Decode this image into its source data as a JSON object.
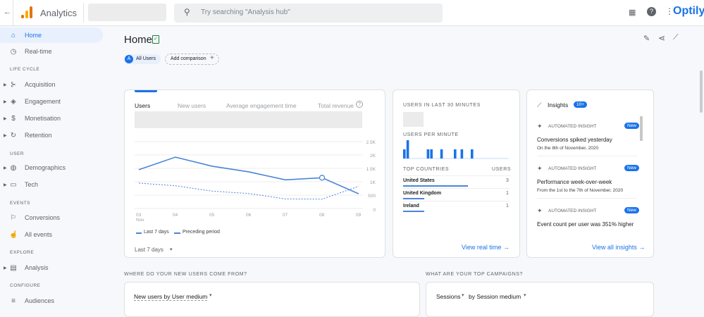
{
  "topbar": {
    "app_title": "Analytics",
    "search_placeholder": "Try searching \"Analysis hub\"",
    "brand": "Optily"
  },
  "sidebar": {
    "items": [
      {
        "label": "Home",
        "icon": "home-icon",
        "glyph": "⌂"
      },
      {
        "label": "Real-time",
        "icon": "clock-icon",
        "glyph": "◷"
      },
      {
        "section": "LIFE CYCLE"
      },
      {
        "label": "Acquisition",
        "icon": "acquisition-icon",
        "glyph": "⊱"
      },
      {
        "label": "Engagement",
        "icon": "tag-icon",
        "glyph": "◈"
      },
      {
        "label": "Monetisation",
        "icon": "dollar-icon",
        "glyph": "$"
      },
      {
        "label": "Retention",
        "icon": "retention-icon",
        "glyph": "↻"
      },
      {
        "section": "USER"
      },
      {
        "label": "Demographics",
        "icon": "globe-icon",
        "glyph": "◍"
      },
      {
        "label": "Tech",
        "icon": "devices-icon",
        "glyph": "▭"
      },
      {
        "section": "EVENTS"
      },
      {
        "label": "Conversions",
        "icon": "flag-icon",
        "glyph": "⚐"
      },
      {
        "label": "All events",
        "icon": "events-icon",
        "glyph": "☝"
      },
      {
        "section": "EXPLORE"
      },
      {
        "label": "Analysis",
        "icon": "analysis-icon",
        "glyph": "▤"
      },
      {
        "section": "CONFIGURE"
      },
      {
        "label": "Audiences",
        "icon": "audiences-icon",
        "glyph": "≡"
      }
    ]
  },
  "page": {
    "title": "Home",
    "all_users_avatar": "A",
    "all_users": "All Users",
    "add_comparison": "Add comparison"
  },
  "overview": {
    "tabs": [
      "Users",
      "New users",
      "Average engagement time",
      "Total revenue"
    ],
    "date_range": "Last 7 days"
  },
  "chart_data": {
    "type": "line",
    "x": [
      "03",
      "04",
      "05",
      "06",
      "07",
      "08",
      "09"
    ],
    "x_sublabel": "Nov",
    "series": [
      {
        "name": "Last 7 days",
        "values": [
          1450,
          1920,
          1580,
          1370,
          1070,
          1150,
          550
        ],
        "style": "solid"
      },
      {
        "name": "Preceding period",
        "values": [
          950,
          850,
          650,
          560,
          360,
          350,
          830
        ],
        "style": "dashed"
      }
    ],
    "yticks": [
      "0",
      "500",
      "1K",
      "1.5K",
      "2K",
      "2.5K"
    ],
    "ylim": [
      0,
      2500
    ],
    "grid": true,
    "legend": "bottom-left",
    "color": "#4a86d8"
  },
  "realtime": {
    "title": "USERS IN LAST 30 MINUTES",
    "per_minute": "USERS PER MINUTE",
    "per_minute_values": [
      2,
      4,
      0,
      0,
      0,
      0,
      0,
      2,
      2,
      0,
      0,
      2,
      0,
      0,
      0,
      2,
      0,
      2,
      0,
      0,
      2,
      0,
      0,
      0,
      0,
      0,
      0,
      0,
      0,
      0
    ],
    "countries_header": "TOP COUNTRIES",
    "users_header": "USERS",
    "countries": [
      {
        "name": "United States",
        "users": "3",
        "share": 1
      },
      {
        "name": "United Kingdom",
        "users": "1",
        "share": 0.33
      },
      {
        "name": "Ireland",
        "users": "1",
        "share": 0.33
      }
    ],
    "link": "View real time"
  },
  "insights": {
    "title": "Insights",
    "count": "10+",
    "items": [
      {
        "type": "AUTOMATED INSIGHT",
        "badge": "New",
        "title": "Conversions spiked yesterday",
        "sub": "On the 8th of November, 2020"
      },
      {
        "type": "AUTOMATED INSIGHT",
        "badge": "New",
        "title": "Performance week-over-week",
        "sub": "From the 1st to the 7th of November, 2020"
      },
      {
        "type": "AUTOMATED INSIGHT",
        "badge": "New",
        "title": "Event count per user was 351% higher",
        "sub": ""
      }
    ],
    "link": "View all insights"
  },
  "sections": {
    "new_users_q": "WHERE DO YOUR NEW USERS COME FROM?",
    "new_users_card": "New users by User medium",
    "campaigns_q": "WHAT ARE YOUR TOP CAMPAIGNS?",
    "sessions": "Sessions",
    "by_session": "by Session medium"
  }
}
